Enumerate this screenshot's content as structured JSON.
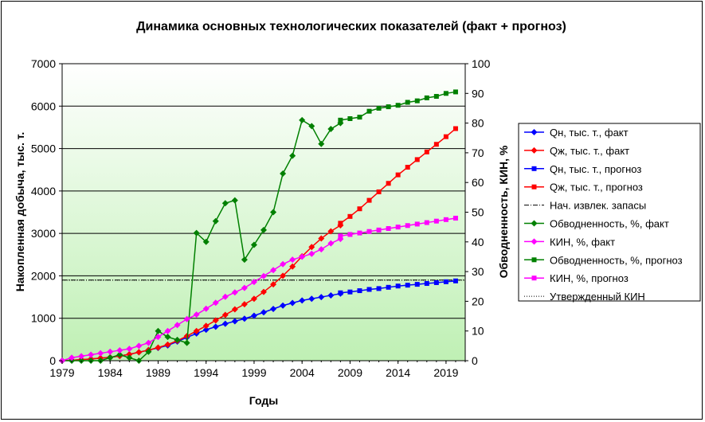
{
  "chart_data": {
    "type": "line",
    "title": "Динамика основных технологических показателей (факт + прогноз)",
    "xlabel": "Годы",
    "ylabel_left": "Накопленная добыча, тыс. т.",
    "ylabel_right": "Обводненность, КИН, %",
    "x_ticks": [
      "1979",
      "1984",
      "1989",
      "1994",
      "1999",
      "2004",
      "2009",
      "2014",
      "2019"
    ],
    "y_left_ticks": [
      "0",
      "1000",
      "2000",
      "3000",
      "4000",
      "5000",
      "6000",
      "7000"
    ],
    "y_right_ticks": [
      "0",
      "10",
      "20",
      "30",
      "40",
      "50",
      "60",
      "70",
      "80",
      "90",
      "100"
    ],
    "xlim": [
      1979,
      2021
    ],
    "ylim_left": [
      0,
      7000
    ],
    "ylim_right": [
      0,
      100
    ],
    "grid": "horizontal",
    "legend_position": "right",
    "colors": {
      "plot_top": "#ffffff",
      "plot_bottom": "#bff0b4"
    },
    "reference_lines": [
      {
        "name": "Нач. извлек. запасы",
        "axis": "left",
        "value": 1900,
        "color": "#000000",
        "dash": "6 2 1 2"
      },
      {
        "name": "Утвержденный КИН",
        "axis": "right",
        "value": 27.1,
        "color": "#000000",
        "dash": "1 2"
      }
    ],
    "series": [
      {
        "name": "Qн, тыс. т., факт",
        "axis": "left",
        "color": "#0000ff",
        "marker": "diamond",
        "x": [
          1979,
          1980,
          1981,
          1982,
          1983,
          1984,
          1985,
          1986,
          1987,
          1988,
          1989,
          1990,
          1991,
          1992,
          1993,
          1994,
          1995,
          1996,
          1997,
          1998,
          1999,
          2000,
          2001,
          2002,
          2003,
          2004,
          2005,
          2006,
          2007,
          2008
        ],
        "y": [
          0,
          10,
          25,
          40,
          60,
          80,
          110,
          150,
          200,
          250,
          300,
          360,
          450,
          550,
          640,
          730,
          800,
          870,
          930,
          990,
          1060,
          1140,
          1220,
          1300,
          1360,
          1420,
          1460,
          1500,
          1540,
          1580
        ]
      },
      {
        "name": "Qж, тыс. т., факт",
        "axis": "left",
        "color": "#ff0000",
        "marker": "diamond",
        "x": [
          1979,
          1980,
          1981,
          1982,
          1983,
          1984,
          1985,
          1986,
          1987,
          1988,
          1989,
          1990,
          1991,
          1992,
          1993,
          1994,
          1995,
          1996,
          1997,
          1998,
          1999,
          2000,
          2001,
          2002,
          2003,
          2004,
          2005,
          2006,
          2007,
          2008
        ],
        "y": [
          0,
          10,
          25,
          40,
          60,
          80,
          110,
          150,
          200,
          250,
          310,
          380,
          470,
          580,
          700,
          820,
          950,
          1080,
          1210,
          1330,
          1460,
          1620,
          1800,
          2000,
          2220,
          2460,
          2680,
          2880,
          3050,
          3190
        ]
      },
      {
        "name": "Qн, тыс. т., прогноз",
        "axis": "left",
        "color": "#0000ff",
        "marker": "square",
        "x": [
          2008,
          2009,
          2010,
          2011,
          2012,
          2013,
          2014,
          2015,
          2016,
          2017,
          2018,
          2019,
          2020
        ],
        "y": [
          1600,
          1620,
          1650,
          1680,
          1700,
          1730,
          1760,
          1780,
          1800,
          1820,
          1840,
          1860,
          1880
        ]
      },
      {
        "name": "Qж, тыс. т., прогноз",
        "axis": "left",
        "color": "#ff0000",
        "marker": "square",
        "x": [
          2008,
          2009,
          2010,
          2011,
          2012,
          2013,
          2014,
          2015,
          2016,
          2017,
          2018,
          2019,
          2020
        ],
        "y": [
          3240,
          3400,
          3580,
          3780,
          3980,
          4180,
          4380,
          4560,
          4740,
          4920,
          5100,
          5280,
          5470
        ]
      },
      {
        "name": "Обводненность, %, факт",
        "axis": "right",
        "color": "#008000",
        "marker": "diamond",
        "x": [
          1979,
          1980,
          1981,
          1982,
          1983,
          1984,
          1985,
          1986,
          1987,
          1988,
          1989,
          1990,
          1991,
          1992,
          1993,
          1994,
          1995,
          1996,
          1997,
          1998,
          1999,
          2000,
          2001,
          2002,
          2003,
          2004,
          2005,
          2006,
          2007,
          2008
        ],
        "y": [
          0,
          0,
          0,
          0,
          0,
          1,
          2,
          1,
          0,
          3,
          10,
          8,
          7,
          6,
          43,
          40,
          47,
          53,
          54,
          34,
          39,
          44,
          50,
          63,
          69,
          81,
          79,
          73,
          78,
          80
        ]
      },
      {
        "name": "КИН, %, факт",
        "axis": "right",
        "color": "#ff00ff",
        "marker": "diamond",
        "x": [
          1979,
          1980,
          1981,
          1982,
          1983,
          1984,
          1985,
          1986,
          1987,
          1988,
          1989,
          1990,
          1991,
          1992,
          1993,
          1994,
          1995,
          1996,
          1997,
          1998,
          1999,
          2000,
          2001,
          2002,
          2003,
          2004,
          2005,
          2006,
          2007,
          2008
        ],
        "y": [
          0,
          1,
          1.5,
          2,
          2.5,
          3,
          3.5,
          4,
          5,
          6,
          8,
          10,
          12,
          14,
          15.5,
          17.5,
          19.5,
          21.5,
          23,
          24.5,
          26.5,
          28.5,
          30.5,
          32.5,
          34,
          35,
          36,
          37.5,
          39.5,
          41
        ]
      },
      {
        "name": "Обводненность, %, прогноз",
        "axis": "right",
        "color": "#008000",
        "marker": "square",
        "x": [
          2008,
          2009,
          2010,
          2011,
          2012,
          2013,
          2014,
          2015,
          2016,
          2017,
          2018,
          2019,
          2020
        ],
        "y": [
          81,
          81.5,
          82,
          84,
          85,
          85.5,
          86,
          87,
          87.5,
          88.5,
          89,
          90,
          90.5
        ]
      },
      {
        "name": "КИН, %, прогноз",
        "axis": "right",
        "color": "#ff00ff",
        "marker": "square",
        "x": [
          2008,
          2009,
          2010,
          2011,
          2012,
          2013,
          2014,
          2015,
          2016,
          2017,
          2018,
          2019,
          2020
        ],
        "y": [
          42,
          42.5,
          43,
          43.5,
          44,
          44.5,
          45,
          45.5,
          46,
          46.5,
          47,
          47.5,
          48
        ]
      }
    ],
    "legend_order": [
      "Qн, тыс. т., факт",
      "Qж, тыс. т., факт",
      "Qн, тыс. т., прогноз",
      "Qж, тыс. т., прогноз",
      "Нач. извлек. запасы",
      "Обводненность, %, факт",
      "КИН, %, факт",
      "Обводненность, %, прогноз",
      "КИН, %, прогноз",
      "Утвержденный КИН"
    ]
  }
}
